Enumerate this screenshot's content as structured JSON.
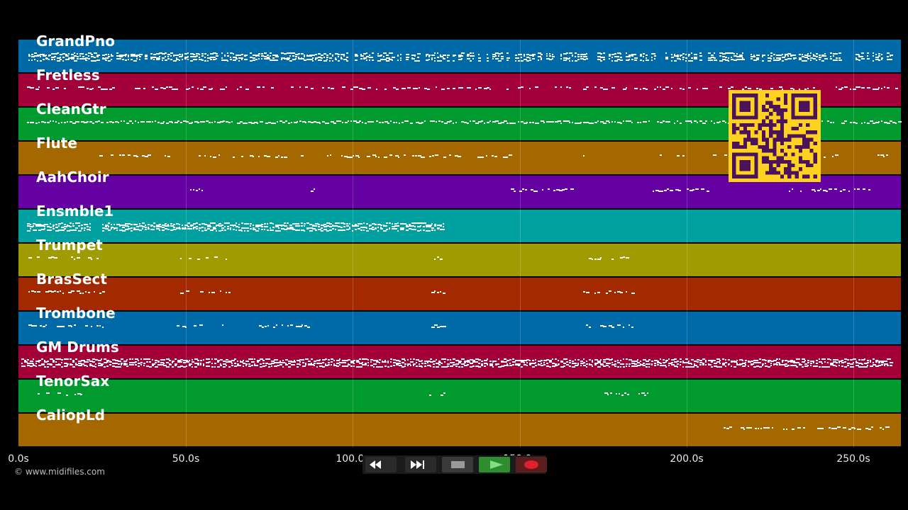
{
  "tracks": [
    {
      "name": "GrandPno",
      "color": "#0069a8"
    },
    {
      "name": "Fretless",
      "color": "#a30039"
    },
    {
      "name": "CleanGtr",
      "color": "#009a2e"
    },
    {
      "name": "Flute",
      "color": "#a56800"
    },
    {
      "name": "AahChoir",
      "color": "#6500a3"
    },
    {
      "name": "Ensmble1",
      "color": "#00a0a0"
    },
    {
      "name": "Trumpet",
      "color": "#a09b00"
    },
    {
      "name": "BrasSect",
      "color": "#a32a00"
    },
    {
      "name": "Trombone",
      "color": "#0069a8"
    },
    {
      "name": "GM Drums",
      "color": "#a30039"
    },
    {
      "name": "TenorSax",
      "color": "#009a2e"
    },
    {
      "name": "CaliopLd",
      "color": "#a56800"
    }
  ],
  "timeline": {
    "ticks": [
      "0.0s",
      "50.0s",
      "100.0s",
      "150.0s",
      "200.0s",
      "250.0s"
    ],
    "duration_seconds": 264
  },
  "transport": {
    "rewind_icon": "rewind-icon",
    "fast_forward_icon": "fast-forward-icon",
    "stop_icon": "stop-icon",
    "play_icon": "play-icon",
    "record_icon": "record-icon",
    "play_color": "#2f8c2f",
    "record_color": "#e0202a"
  },
  "copyright": "© www.midifiles.com",
  "qr_code": {
    "color": "#ffd21f",
    "fg": "#4b145a"
  }
}
